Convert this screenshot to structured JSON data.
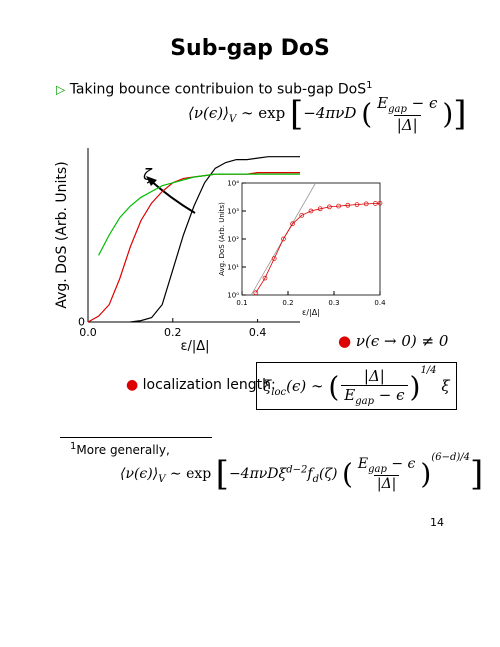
{
  "title": "Sub-gap DoS",
  "bullet1": {
    "text": "Taking bounce contribuion to sub-gap DoS",
    "footnote_mark": "1"
  },
  "formula1": {
    "lhs": "⟨ν(ϵ)⟩",
    "lhs_sub": "V",
    "rel": "∼ exp",
    "factor": "−4πνD",
    "num": "E",
    "num_sub": "gap",
    "num_rest": " − ϵ",
    "den": "|Δ|"
  },
  "bullet2": "ν(ϵ → 0) ≠ 0",
  "bullet3": {
    "text": "localization length:",
    "lhs": "ξ",
    "lhs_sub": "loc",
    "lhs_rest": "(ϵ) ∼",
    "num": "|Δ|",
    "den": "E",
    "den_sub": "gap",
    "den_rest": " − ϵ",
    "exp": "1/4",
    "tail": "ξ"
  },
  "footnote": {
    "mark": "1",
    "text": "More generally,",
    "lhs": "⟨ν(ϵ)⟩",
    "lhs_sub": "V",
    "rel": "∼ exp",
    "factor": "−4πνDξ",
    "factor_sup": "d−2",
    "f": "f",
    "f_sub": "d",
    "f_rest": "(ζ)",
    "num": "E",
    "num_sub": "gap",
    "num_rest": " − ϵ",
    "den": "|Δ|",
    "exp": "(6−d)/4"
  },
  "page_number": "14",
  "chart_data": [
    {
      "type": "line",
      "xlabel": "ε/|Δ|",
      "ylabel": "Avg. DoS (Arb. Units)",
      "annotation": "ζ",
      "x": [
        0,
        0.025,
        0.05,
        0.075,
        0.1,
        0.125,
        0.15,
        0.175,
        0.2,
        0.225,
        0.25,
        0.275,
        0.3,
        0.325,
        0.35,
        0.375,
        0.4,
        0.425,
        0.45,
        0.475,
        0.5
      ],
      "series": [
        {
          "color": "#000000",
          "values": [
            null,
            null,
            null,
            null,
            0,
            0.05,
            0.15,
            0.6,
            1.8,
            3.0,
            4.0,
            4.8,
            5.3,
            5.5,
            5.6,
            5.6,
            5.65,
            5.7,
            5.7,
            5.7,
            5.7
          ]
        },
        {
          "color": "#dd0000",
          "values": [
            0,
            0.2,
            0.6,
            1.5,
            2.6,
            3.5,
            4.1,
            4.5,
            4.8,
            4.95,
            5.0,
            5.05,
            5.1,
            5.1,
            5.1,
            5.1,
            5.15,
            5.15,
            5.15,
            5.15,
            5.15
          ]
        },
        {
          "color": "#00bb00",
          "values": [
            null,
            2.3,
            3.0,
            3.6,
            4.0,
            4.3,
            4.5,
            4.7,
            4.8,
            4.9,
            5.0,
            5.05,
            5.1,
            5.1,
            5.1,
            5.1,
            5.1,
            5.1,
            5.1,
            5.1,
            5.1
          ]
        }
      ],
      "xlim": [
        0,
        0.5
      ],
      "ylim": [
        0,
        6
      ],
      "xticks": [
        {
          "value": 0,
          "label": "0.0"
        },
        0.2,
        0.4
      ],
      "yticks": [
        0
      ]
    },
    {
      "type": "line",
      "xlabel": "ε/|Δ|",
      "ylabel": "Avg. DoS (Arb. Units)",
      "log_y": true,
      "series": [
        {
          "color": "#999999",
          "x": [
            0.12,
            0.26
          ],
          "values": [
            1,
            10000
          ]
        },
        {
          "color": "#dd0000",
          "markers": true,
          "x": [
            0.13,
            0.15,
            0.17,
            0.19,
            0.21,
            0.23,
            0.25,
            0.27,
            0.29,
            0.31,
            0.33,
            0.35,
            0.37,
            0.39,
            0.4
          ],
          "values": [
            1.2,
            4,
            20,
            100,
            350,
            700,
            1000,
            1200,
            1400,
            1500,
            1600,
            1700,
            1800,
            1850,
            1900
          ]
        }
      ],
      "xlim": [
        0.1,
        0.4
      ],
      "ylim": [
        1,
        10000
      ],
      "xticks": [
        0.1,
        0.2,
        0.3,
        0.4
      ],
      "yticks": [
        {
          "value": 1,
          "label": "10⁰"
        },
        {
          "value": 10,
          "label": "10¹"
        },
        {
          "value": 100,
          "label": "10²"
        },
        {
          "value": 1000,
          "label": "10³"
        },
        {
          "value": 10000,
          "label": "10⁴"
        }
      ]
    }
  ]
}
